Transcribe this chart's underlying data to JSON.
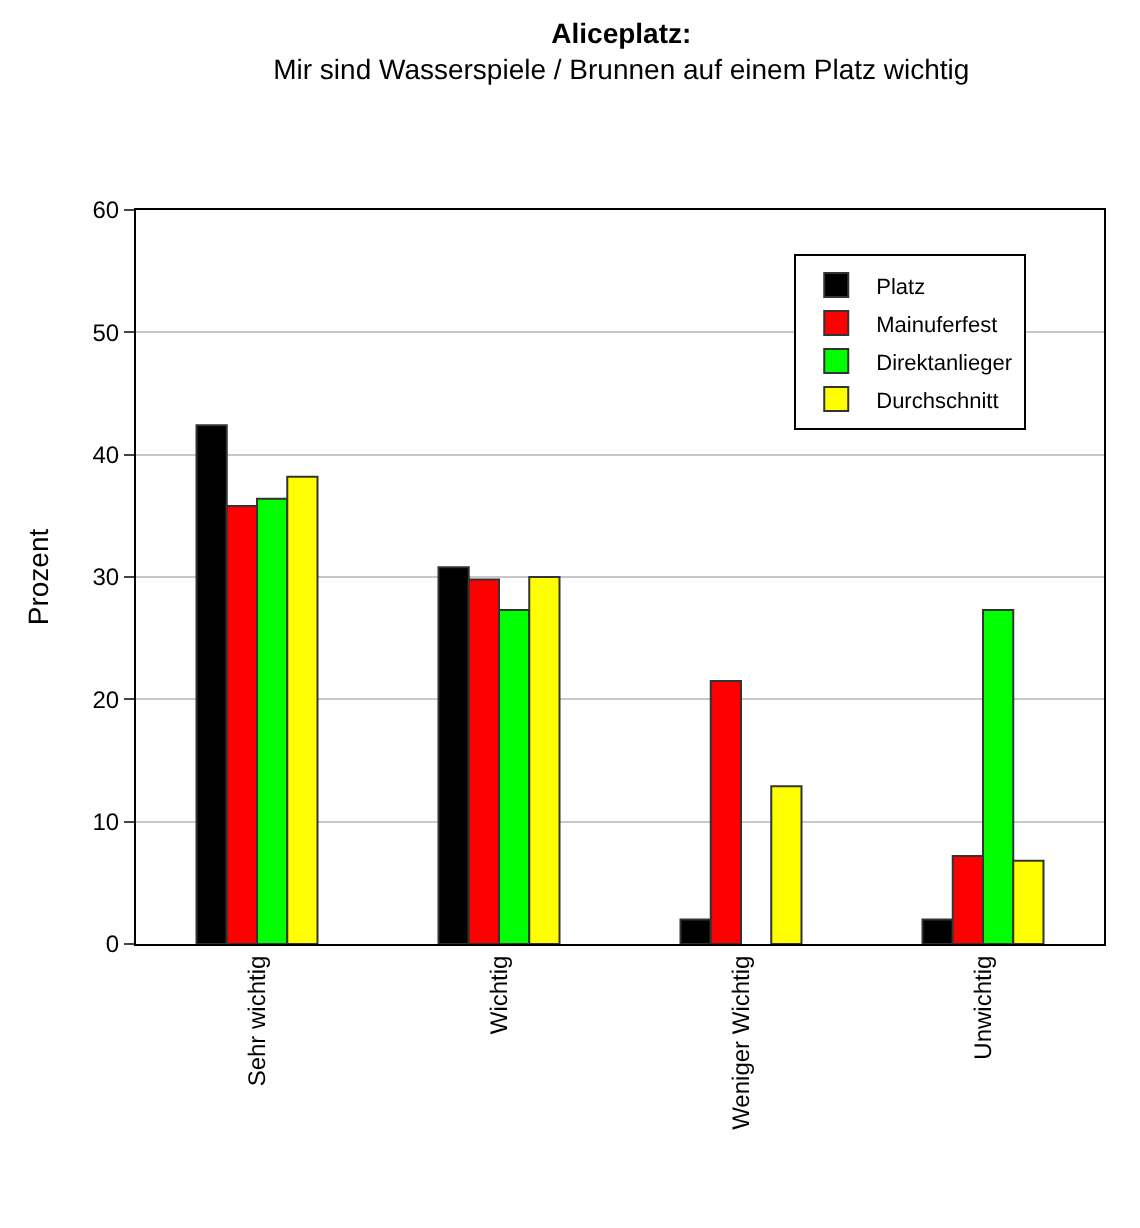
{
  "chart_data": {
    "type": "bar",
    "title": "Aliceplatz:",
    "subtitle": "Mir sind Wasserspiele / Brunnen auf einem Platz wichtig",
    "ylabel": "Prozent",
    "categories": [
      "Sehr wichtig",
      "Wichtig",
      "Weniger Wichtig",
      "Unwichtig"
    ],
    "series": [
      {
        "name": "Platz",
        "color": "#000000",
        "values": [
          42.4,
          30.8,
          2.0,
          2.0
        ]
      },
      {
        "name": "Mainuferfest",
        "color": "#ff0000",
        "values": [
          35.8,
          29.8,
          21.5,
          7.2
        ]
      },
      {
        "name": "Direktanlieger",
        "color": "#00ff00",
        "values": [
          36.4,
          27.3,
          null,
          27.3
        ]
      },
      {
        "name": "Durchschnitt",
        "color": "#ffff00",
        "values": [
          38.2,
          30.0,
          12.9,
          6.8
        ]
      }
    ],
    "ylim": [
      0,
      60
    ],
    "yticks": [
      0,
      10,
      20,
      30,
      40,
      50,
      60
    ],
    "grid": "y",
    "legend": "top right"
  }
}
